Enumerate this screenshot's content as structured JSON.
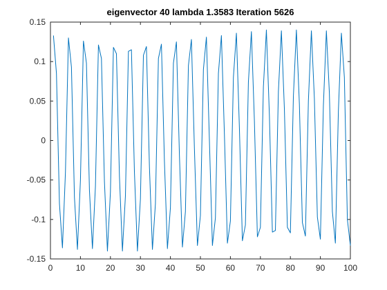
{
  "chart_data": {
    "type": "line",
    "title": "eigenvector 40 lambda 1.3583 Iteration 5626",
    "xlabel": "",
    "ylabel": "",
    "xlim": [
      0,
      100
    ],
    "ylim": [
      -0.15,
      0.15
    ],
    "xticks": [
      0,
      10,
      20,
      30,
      40,
      50,
      60,
      70,
      80,
      90,
      100
    ],
    "yticks": [
      -0.15,
      -0.1,
      -0.05,
      0,
      0.05,
      0.1,
      0.15
    ],
    "xtick_labels": [
      "0",
      "10",
      "20",
      "30",
      "40",
      "50",
      "60",
      "70",
      "80",
      "90",
      "100"
    ],
    "ytick_labels": [
      "-0.15",
      "-0.1",
      "-0.05",
      "0",
      "0.05",
      "0.1",
      "0.15"
    ],
    "grid": false,
    "line_color": "#0072BD",
    "series": [
      {
        "x": [
          1,
          2,
          3,
          4,
          5,
          6,
          7,
          8,
          9,
          10,
          11,
          12,
          13,
          14,
          15,
          16,
          17,
          18,
          19,
          20,
          21,
          22,
          23,
          24,
          25,
          26,
          27,
          28,
          29,
          30,
          31,
          32,
          33,
          34,
          35,
          36,
          37,
          38,
          39,
          40,
          41,
          42,
          43,
          44,
          45,
          46,
          47,
          48,
          49,
          50,
          51,
          52,
          53,
          54,
          55,
          56,
          57,
          58,
          59,
          60,
          61,
          62,
          63,
          64,
          65,
          66,
          67,
          68,
          69,
          70,
          71,
          72,
          73,
          74,
          75,
          76,
          77,
          78,
          79,
          80,
          81,
          82,
          83,
          84,
          85,
          86,
          87,
          88,
          89,
          90,
          91,
          92,
          93,
          94,
          95,
          96,
          97,
          98,
          99,
          100
        ],
        "values": [
          0.133,
          0.085,
          -0.08,
          -0.136,
          -0.04,
          0.13,
          0.093,
          -0.072,
          -0.138,
          -0.05,
          0.126,
          0.098,
          -0.063,
          -0.137,
          -0.058,
          0.121,
          0.104,
          -0.052,
          -0.14,
          -0.065,
          0.118,
          0.11,
          -0.045,
          -0.14,
          -0.07,
          0.113,
          0.115,
          -0.04,
          -0.14,
          -0.074,
          0.108,
          0.119,
          -0.033,
          -0.138,
          -0.08,
          0.104,
          0.122,
          -0.026,
          -0.137,
          -0.085,
          0.098,
          0.125,
          -0.018,
          -0.135,
          -0.09,
          0.095,
          0.128,
          -0.01,
          -0.133,
          -0.095,
          0.09,
          0.131,
          0.0,
          -0.133,
          -0.098,
          0.085,
          0.133,
          0.008,
          -0.13,
          -0.102,
          0.08,
          0.136,
          0.016,
          -0.127,
          -0.107,
          0.074,
          0.138,
          0.025,
          -0.122,
          -0.11,
          0.068,
          0.14,
          0.032,
          -0.116,
          -0.114,
          0.062,
          0.139,
          0.04,
          -0.11,
          -0.117,
          0.056,
          0.14,
          0.046,
          -0.104,
          -0.121,
          0.05,
          0.139,
          0.053,
          -0.097,
          -0.125,
          0.044,
          0.139,
          0.06,
          -0.09,
          -0.13,
          0.037,
          0.136,
          0.08,
          -0.1,
          -0.133
        ]
      }
    ]
  }
}
